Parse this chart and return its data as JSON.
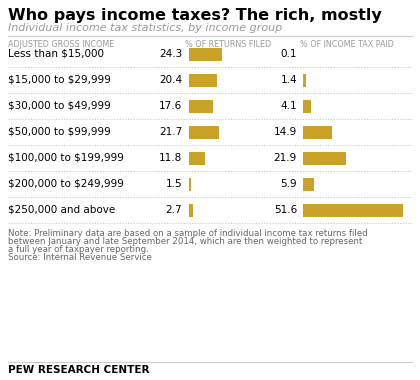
{
  "title": "Who pays income taxes? The rich, mostly",
  "subtitle": "Individual income tax statistics, by income group",
  "col1_header": "ADJUSTED GROSS INCOME",
  "col2_header": "% OF RETURNS FILED",
  "col3_header": "% OF INCOME TAX PAID",
  "categories": [
    "Less than $15,000",
    "$15,000 to $29,999",
    "$30,000 to $49,999",
    "$50,000 to $99,999",
    "$100,000 to $199,999",
    "$200,000 to $249,999",
    "$250,000 and above"
  ],
  "returns_filed": [
    24.3,
    20.4,
    17.6,
    21.7,
    11.8,
    1.5,
    2.7
  ],
  "income_tax_paid": [
    0.1,
    1.4,
    4.1,
    14.9,
    21.9,
    5.9,
    51.6
  ],
  "bar_color": "#C9A227",
  "bar_max": 55,
  "note_line1": "Note: Preliminary data are based on a sample of individual income tax returns filed",
  "note_line2": "between January and late September 2014, which are then weighted to represent",
  "note_line3": "a full year of taxpayer reporting.",
  "source": "Source: Internal Revenue Service",
  "footer": "PEW RESEARCH CENTER",
  "bg_color": "#FFFFFF",
  "header_color": "#999999",
  "note_color": "#666666"
}
